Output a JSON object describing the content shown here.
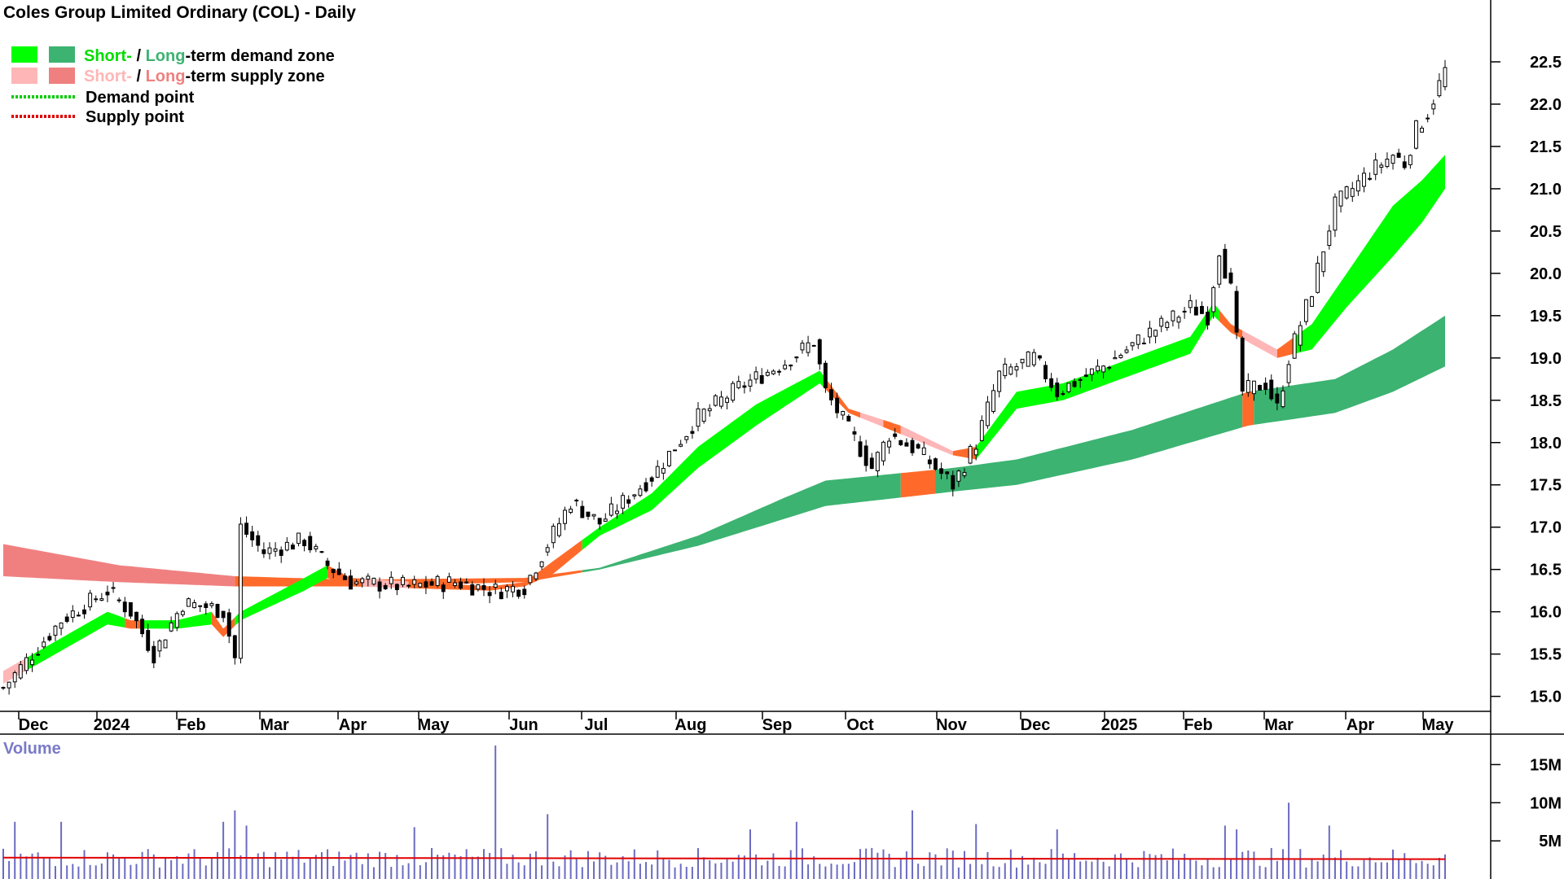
{
  "chart_data": {
    "type": "candlestick",
    "title": "Coles Group Limited Ordinary (COL) - Daily",
    "legend": {
      "demand_zone": {
        "short": "Short-",
        "sep": " / ",
        "long": "Long",
        "rest": "-term demand zone"
      },
      "supply_zone": {
        "short": "Short-",
        "sep": " / ",
        "long": "Long",
        "rest": "-term supply zone"
      },
      "demand_point": "Demand point",
      "supply_point": "Supply point"
    },
    "colors": {
      "short_demand": "#00ff00",
      "long_demand": "#3cb371",
      "short_supply": "#ffb6b6",
      "long_supply": "#f08080",
      "transition": "#ff6a2a",
      "demand_point": "#00cc00",
      "supply_point": "#e00000",
      "volume_bar": "#6b6bc2",
      "volume_avg": "#e00000"
    },
    "x_ticks": [
      "Dec",
      "2024",
      "Feb",
      "Mar",
      "Apr",
      "May",
      "Jun",
      "Jul",
      "Aug",
      "Sep",
      "Oct",
      "Nov",
      "Dec",
      "2025",
      "Feb",
      "Mar",
      "Apr",
      "May"
    ],
    "y_ticks": [
      "15.0",
      "15.5",
      "16.0",
      "16.5",
      "17.0",
      "17.5",
      "18.0",
      "18.5",
      "19.0",
      "19.5",
      "20.0",
      "20.5",
      "21.0",
      "21.5",
      "22.0",
      "22.5"
    ],
    "ylim": [
      14.9,
      22.75
    ],
    "price_path": [
      [
        0,
        15.1
      ],
      [
        10,
        15.9
      ],
      [
        18,
        16.25
      ],
      [
        22,
        16.0
      ],
      [
        26,
        15.5
      ],
      [
        31,
        16.1
      ],
      [
        36,
        16.05
      ],
      [
        38,
        16.0
      ],
      [
        40,
        15.45
      ],
      [
        41,
        17.0
      ],
      [
        45,
        16.7
      ],
      [
        52,
        16.85
      ],
      [
        56,
        16.55
      ],
      [
        60,
        16.35
      ],
      [
        70,
        16.3
      ],
      [
        78,
        16.35
      ],
      [
        85,
        16.25
      ],
      [
        90,
        16.3
      ],
      [
        98,
        17.3
      ],
      [
        103,
        17.05
      ],
      [
        112,
        17.6
      ],
      [
        120,
        18.3
      ],
      [
        127,
        18.65
      ],
      [
        135,
        18.95
      ],
      [
        140,
        19.2
      ],
      [
        142,
        18.6
      ],
      [
        150,
        17.7
      ],
      [
        153,
        18.1
      ],
      [
        158,
        17.9
      ],
      [
        164,
        17.5
      ],
      [
        168,
        18.0
      ],
      [
        172,
        18.8
      ],
      [
        178,
        19.0
      ],
      [
        182,
        18.6
      ],
      [
        190,
        18.9
      ],
      [
        198,
        19.3
      ],
      [
        205,
        19.6
      ],
      [
        208,
        19.5
      ],
      [
        210,
        20.3
      ],
      [
        212,
        19.8
      ],
      [
        214,
        18.6
      ],
      [
        218,
        18.7
      ],
      [
        220,
        18.4
      ],
      [
        222,
        19.0
      ],
      [
        226,
        19.8
      ],
      [
        230,
        20.8
      ],
      [
        236,
        21.2
      ],
      [
        240,
        21.4
      ],
      [
        242,
        21.3
      ],
      [
        244,
        21.7
      ],
      [
        246,
        21.9
      ],
      [
        249,
        22.4
      ]
    ],
    "short_zone_upper": [
      [
        0,
        15.3
      ],
      [
        18,
        16.0
      ],
      [
        22,
        15.9
      ],
      [
        30,
        15.9
      ],
      [
        36,
        16.0
      ],
      [
        38,
        15.8
      ],
      [
        41,
        16.0
      ],
      [
        52,
        16.4
      ],
      [
        56,
        16.55
      ],
      [
        60,
        16.4
      ],
      [
        84,
        16.3
      ],
      [
        90,
        16.35
      ],
      [
        95,
        16.6
      ],
      [
        103,
        17.0
      ],
      [
        112,
        17.4
      ],
      [
        120,
        17.95
      ],
      [
        130,
        18.45
      ],
      [
        141,
        18.85
      ],
      [
        146,
        18.4
      ],
      [
        155,
        18.2
      ],
      [
        164,
        17.9
      ],
      [
        168,
        17.95
      ],
      [
        175,
        18.6
      ],
      [
        183,
        18.7
      ],
      [
        195,
        19.0
      ],
      [
        205,
        19.25
      ],
      [
        209,
        19.65
      ],
      [
        212,
        19.4
      ],
      [
        220,
        19.1
      ],
      [
        226,
        19.4
      ],
      [
        232,
        20.0
      ],
      [
        240,
        20.8
      ],
      [
        245,
        21.1
      ],
      [
        249,
        21.4
      ]
    ],
    "short_zone_lower": [
      [
        0,
        15.15
      ],
      [
        18,
        15.85
      ],
      [
        22,
        15.8
      ],
      [
        30,
        15.8
      ],
      [
        36,
        15.85
      ],
      [
        38,
        15.7
      ],
      [
        41,
        15.9
      ],
      [
        52,
        16.25
      ],
      [
        56,
        16.4
      ],
      [
        60,
        16.3
      ],
      [
        84,
        16.25
      ],
      [
        90,
        16.3
      ],
      [
        95,
        16.45
      ],
      [
        103,
        16.9
      ],
      [
        112,
        17.2
      ],
      [
        120,
        17.7
      ],
      [
        130,
        18.2
      ],
      [
        141,
        18.7
      ],
      [
        146,
        18.35
      ],
      [
        155,
        18.1
      ],
      [
        164,
        17.85
      ],
      [
        168,
        17.8
      ],
      [
        175,
        18.4
      ],
      [
        183,
        18.5
      ],
      [
        195,
        18.8
      ],
      [
        205,
        19.05
      ],
      [
        209,
        19.5
      ],
      [
        212,
        19.3
      ],
      [
        220,
        19.0
      ],
      [
        226,
        19.1
      ],
      [
        232,
        19.6
      ],
      [
        240,
        20.2
      ],
      [
        245,
        20.6
      ],
      [
        249,
        21.0
      ]
    ],
    "long_zone_upper": [
      [
        0,
        16.8
      ],
      [
        20,
        16.55
      ],
      [
        40,
        16.42
      ],
      [
        60,
        16.38
      ],
      [
        90,
        16.4
      ],
      [
        103,
        16.52
      ],
      [
        120,
        16.9
      ],
      [
        135,
        17.35
      ],
      [
        142,
        17.55
      ],
      [
        164,
        17.7
      ],
      [
        175,
        17.8
      ],
      [
        195,
        18.15
      ],
      [
        215,
        18.6
      ],
      [
        230,
        18.75
      ],
      [
        240,
        19.1
      ],
      [
        249,
        19.5
      ]
    ],
    "long_zone_lower": [
      [
        0,
        16.42
      ],
      [
        20,
        16.35
      ],
      [
        40,
        16.3
      ],
      [
        60,
        16.3
      ],
      [
        90,
        16.35
      ],
      [
        103,
        16.5
      ],
      [
        120,
        16.78
      ],
      [
        135,
        17.1
      ],
      [
        142,
        17.25
      ],
      [
        164,
        17.42
      ],
      [
        175,
        17.5
      ],
      [
        195,
        17.8
      ],
      [
        215,
        18.2
      ],
      [
        230,
        18.35
      ],
      [
        240,
        18.6
      ],
      [
        249,
        18.9
      ]
    ],
    "volume": {
      "label": "Volume",
      "y_ticks": [
        "5M",
        "10M",
        "15M"
      ],
      "ylim": [
        0,
        17.5
      ],
      "average_level": 2.8,
      "spikes": [
        [
          2,
          7.5
        ],
        [
          10,
          7.5
        ],
        [
          38,
          7.5
        ],
        [
          40,
          9.0
        ],
        [
          42,
          7.0
        ],
        [
          71,
          6.8
        ],
        [
          85,
          17.5
        ],
        [
          94,
          8.5
        ],
        [
          129,
          6.5
        ],
        [
          137,
          7.5
        ],
        [
          157,
          9.0
        ],
        [
          168,
          7.2
        ],
        [
          182,
          6.5
        ],
        [
          211,
          7.0
        ],
        [
          213,
          6.5
        ],
        [
          222,
          10.0
        ],
        [
          229,
          7.0
        ]
      ]
    }
  }
}
